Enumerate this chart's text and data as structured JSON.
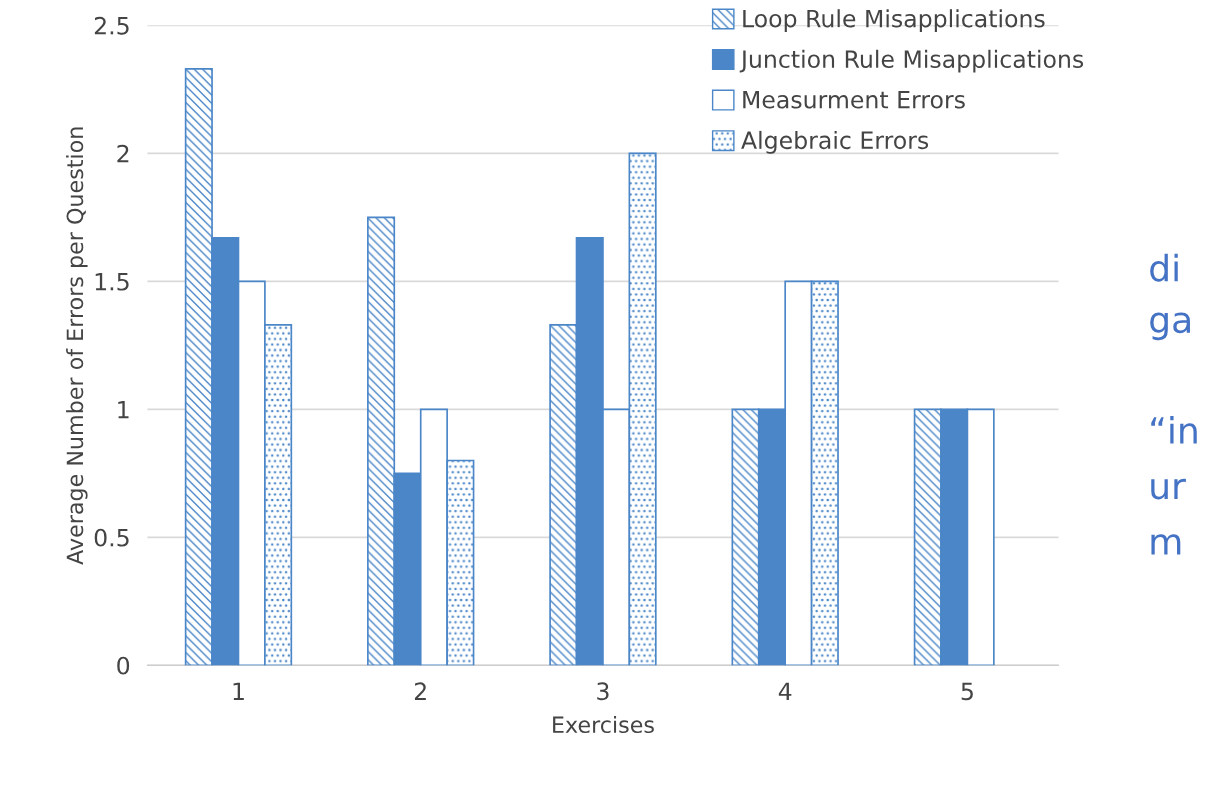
{
  "chart_data": {
    "type": "bar",
    "xlabel": "Exercises",
    "ylabel": "Average Number of Errors per Question",
    "categories": [
      "1",
      "2",
      "3",
      "4",
      "5"
    ],
    "series": [
      {
        "name": "Loop Rule Misapplications",
        "color": "#4a86c8",
        "values": [
          2.33,
          1.75,
          1.33,
          1,
          1
        ]
      },
      {
        "name": "Junction Rule Misapplications",
        "color": "#4a86c8",
        "values": [
          1.67,
          0.75,
          1.67,
          1,
          1
        ]
      },
      {
        "name": "Measurment Errors",
        "color": "#4a86c8",
        "values": [
          1.5,
          1,
          1,
          1.5,
          1
        ]
      },
      {
        "name": "Algebraic Errors",
        "color": "#4a86c8",
        "values": [
          1.33,
          0.8,
          2,
          1.5,
          null
        ]
      }
    ],
    "ylim": [
      0,
      2.5
    ],
    "yticks": [
      0,
      0.5,
      1,
      1.5,
      2,
      2.5
    ],
    "grid": "y",
    "legend": "top right",
    "annotations": [
      "di",
      "ga",
      "“in",
      "ur",
      "m"
    ]
  }
}
